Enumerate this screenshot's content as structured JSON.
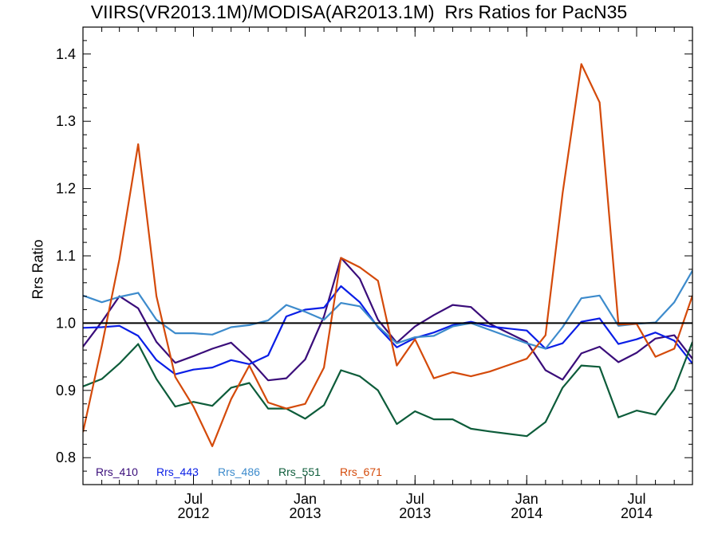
{
  "chart_data": {
    "type": "line",
    "title": "VIIRS(VR2013.1M)/MODISA(AR2013.1M)  Rrs Ratios for PacN35",
    "xlabel": "",
    "ylabel": "Rrs Ratio",
    "xlim": [
      "2012-01-01",
      "2014-10-01"
    ],
    "ylim": [
      0.76,
      1.44
    ],
    "y_ticks": [
      "0.8",
      "0.9",
      "1.0",
      "1.1",
      "1.2",
      "1.3",
      "1.4"
    ],
    "x_ticks": [
      {
        "date": "2012-07-01",
        "label_top": "Jul",
        "label_bottom": "2012"
      },
      {
        "date": "2013-01-01",
        "label_top": "Jan",
        "label_bottom": "2013"
      },
      {
        "date": "2013-07-01",
        "label_top": "Jul",
        "label_bottom": "2013"
      },
      {
        "date": "2014-01-01",
        "label_top": "Jan",
        "label_bottom": "2014"
      },
      {
        "date": "2014-07-01",
        "label_top": "Jul",
        "label_bottom": "2014"
      }
    ],
    "reference_line": 1.0,
    "grid": false,
    "legend_position": "bottom-left",
    "x": [
      "2012-01-01",
      "2012-02-01",
      "2012-03-01",
      "2012-04-01",
      "2012-05-01",
      "2012-06-01",
      "2012-07-01",
      "2012-08-01",
      "2012-09-01",
      "2012-10-01",
      "2012-11-01",
      "2012-12-01",
      "2013-01-01",
      "2013-02-01",
      "2013-03-01",
      "2013-04-01",
      "2013-05-01",
      "2013-06-01",
      "2013-07-01",
      "2013-08-01",
      "2013-09-01",
      "2013-10-01",
      "2013-11-01",
      "2014-01-01",
      "2014-02-01",
      "2014-03-01",
      "2014-04-01",
      "2014-05-01",
      "2014-06-01",
      "2014-07-01",
      "2014-08-01",
      "2014-09-01",
      "2014-10-01"
    ],
    "series": [
      {
        "name": "Rrs_410",
        "color": "#3a0d7a",
        "values": [
          0.965,
          1.002,
          1.04,
          1.022,
          0.972,
          0.941,
          0.951,
          0.962,
          0.971,
          0.946,
          0.915,
          0.918,
          0.946,
          1.01,
          1.097,
          1.066,
          1.005,
          0.971,
          0.995,
          1.012,
          1.027,
          1.024,
          0.999,
          0.972,
          0.93,
          0.916,
          0.955,
          0.965,
          0.942,
          0.956,
          0.977,
          0.982,
          0.947
        ]
      },
      {
        "name": "Rrs_443",
        "color": "#0a1ee6",
        "values": [
          0.993,
          0.994,
          0.996,
          0.981,
          0.945,
          0.924,
          0.931,
          0.934,
          0.945,
          0.939,
          0.952,
          1.01,
          1.02,
          1.023,
          1.055,
          1.031,
          0.994,
          0.964,
          0.978,
          0.986,
          0.997,
          1.002,
          0.995,
          0.989,
          0.962,
          0.97,
          1.002,
          1.007,
          0.969,
          0.976,
          0.986,
          0.974,
          0.94
        ]
      },
      {
        "name": "Rrs_486",
        "color": "#3d8bcc",
        "values": [
          1.041,
          1.031,
          1.039,
          1.045,
          1.005,
          0.985,
          0.985,
          0.983,
          0.994,
          0.997,
          1.004,
          1.027,
          1.017,
          1.005,
          1.03,
          1.025,
          0.995,
          0.97,
          0.979,
          0.981,
          0.995,
          1.0,
          0.99,
          0.97,
          0.962,
          0.994,
          1.037,
          1.041,
          0.996,
          0.999,
          1.001,
          1.031,
          1.078
        ]
      },
      {
        "name": "Rrs_551",
        "color": "#0d5c3a",
        "values": [
          0.906,
          0.917,
          0.94,
          0.969,
          0.917,
          0.876,
          0.883,
          0.877,
          0.904,
          0.911,
          0.873,
          0.873,
          0.858,
          0.878,
          0.93,
          0.921,
          0.9,
          0.85,
          0.869,
          0.857,
          0.857,
          0.843,
          0.839,
          0.832,
          0.853,
          0.904,
          0.937,
          0.935,
          0.86,
          0.87,
          0.864,
          0.902,
          0.972
        ]
      },
      {
        "name": "Rrs_671",
        "color": "#d44a0a",
        "values": [
          0.838,
          0.966,
          1.095,
          1.266,
          1.04,
          0.92,
          0.876,
          0.817,
          0.887,
          0.937,
          0.882,
          0.873,
          0.88,
          0.934,
          1.097,
          1.083,
          1.063,
          0.937,
          0.976,
          0.918,
          0.927,
          0.921,
          0.928,
          0.947,
          0.982,
          1.193,
          1.385,
          1.328,
          0.998,
          0.999,
          0.95,
          0.962,
          1.041
        ]
      }
    ]
  }
}
